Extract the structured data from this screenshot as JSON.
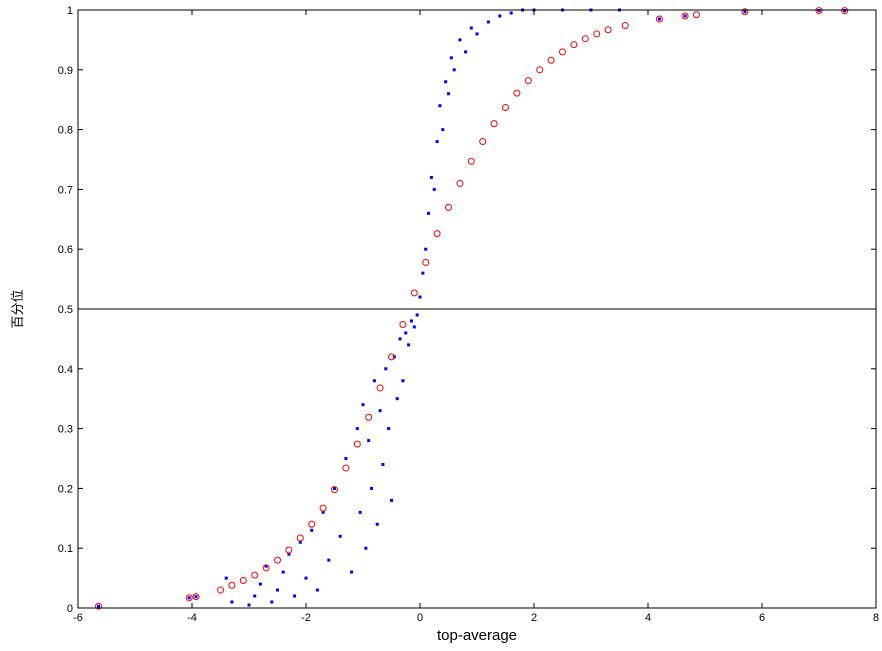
{
  "chart_data": {
    "type": "scatter",
    "title": "",
    "xlabel": "top-average",
    "ylabel": "百分位",
    "xlim": [
      -6,
      8
    ],
    "ylim": [
      0,
      1
    ],
    "x_ticks": [
      -6,
      -4,
      -2,
      0,
      2,
      4,
      6,
      8
    ],
    "x_tick_labels": [
      "-6",
      "-4",
      "-2",
      "0",
      "2",
      "4",
      "6",
      "8"
    ],
    "y_ticks": [
      0,
      0.1,
      0.2,
      0.3,
      0.4,
      0.5,
      0.6,
      0.7,
      0.8,
      0.9,
      1
    ],
    "y_tick_labels": [
      "0",
      "0.1",
      "0.2",
      "0.3",
      "0.4",
      "0.5",
      "0.6",
      "0.7",
      "0.8",
      "0.9",
      "1"
    ],
    "grid": false,
    "reference_line": {
      "y": 0.5
    },
    "series": [
      {
        "marker": "dot",
        "color": "#0000ff",
        "points": [
          [
            -5.64,
            0.003
          ],
          [
            -4.05,
            0.017
          ],
          [
            -3.93,
            0.019
          ],
          [
            -3.4,
            0.05
          ],
          [
            -3.3,
            0.01
          ],
          [
            -3.0,
            0.005
          ],
          [
            -2.9,
            0.02
          ],
          [
            -2.8,
            0.04
          ],
          [
            -2.7,
            0.07
          ],
          [
            -2.6,
            0.01
          ],
          [
            -2.5,
            0.03
          ],
          [
            -2.4,
            0.06
          ],
          [
            -2.3,
            0.09
          ],
          [
            -2.2,
            0.02
          ],
          [
            -2.1,
            0.11
          ],
          [
            -2.0,
            0.05
          ],
          [
            -1.9,
            0.13
          ],
          [
            -1.8,
            0.03
          ],
          [
            -1.7,
            0.16
          ],
          [
            -1.6,
            0.08
          ],
          [
            -1.5,
            0.2
          ],
          [
            -1.4,
            0.12
          ],
          [
            -1.3,
            0.25
          ],
          [
            -1.2,
            0.06
          ],
          [
            -1.1,
            0.3
          ],
          [
            -1.05,
            0.16
          ],
          [
            -1.0,
            0.34
          ],
          [
            -0.95,
            0.1
          ],
          [
            -0.9,
            0.28
          ],
          [
            -0.85,
            0.2
          ],
          [
            -0.8,
            0.38
          ],
          [
            -0.75,
            0.14
          ],
          [
            -0.7,
            0.33
          ],
          [
            -0.65,
            0.24
          ],
          [
            -0.6,
            0.4
          ],
          [
            -0.55,
            0.3
          ],
          [
            -0.5,
            0.18
          ],
          [
            -0.45,
            0.42
          ],
          [
            -0.4,
            0.35
          ],
          [
            -0.35,
            0.45
          ],
          [
            -0.3,
            0.38
          ],
          [
            -0.25,
            0.46
          ],
          [
            -0.2,
            0.44
          ],
          [
            -0.15,
            0.48
          ],
          [
            -0.1,
            0.47
          ],
          [
            -0.05,
            0.49
          ],
          [
            0.0,
            0.52
          ],
          [
            0.05,
            0.56
          ],
          [
            0.1,
            0.6
          ],
          [
            0.15,
            0.66
          ],
          [
            0.2,
            0.72
          ],
          [
            0.25,
            0.7
          ],
          [
            0.3,
            0.78
          ],
          [
            0.35,
            0.84
          ],
          [
            0.4,
            0.8
          ],
          [
            0.45,
            0.88
          ],
          [
            0.5,
            0.86
          ],
          [
            0.55,
            0.92
          ],
          [
            0.6,
            0.9
          ],
          [
            0.7,
            0.95
          ],
          [
            0.8,
            0.93
          ],
          [
            0.9,
            0.97
          ],
          [
            1.0,
            0.96
          ],
          [
            1.2,
            0.98
          ],
          [
            1.4,
            0.99
          ],
          [
            1.6,
            0.995
          ],
          [
            1.8,
            1.0
          ],
          [
            2.0,
            1.0
          ],
          [
            2.5,
            1.0
          ],
          [
            3.0,
            1.0
          ],
          [
            3.5,
            1.0
          ],
          [
            4.2,
            0.985
          ],
          [
            4.65,
            0.99
          ],
          [
            5.7,
            0.997
          ],
          [
            7.0,
            0.999
          ],
          [
            7.45,
            0.999
          ]
        ]
      },
      {
        "marker": "circle",
        "color": "#ff0000",
        "points": [
          [
            -5.64,
            0.003
          ],
          [
            -4.05,
            0.017
          ],
          [
            -3.93,
            0.019
          ],
          [
            -3.5,
            0.03
          ],
          [
            -3.3,
            0.038
          ],
          [
            -3.1,
            0.046
          ],
          [
            -2.9,
            0.055
          ],
          [
            -2.7,
            0.067
          ],
          [
            -2.5,
            0.08
          ],
          [
            -2.3,
            0.097
          ],
          [
            -2.1,
            0.117
          ],
          [
            -1.9,
            0.14
          ],
          [
            -1.7,
            0.167
          ],
          [
            -1.5,
            0.198
          ],
          [
            -1.3,
            0.234
          ],
          [
            -1.1,
            0.274
          ],
          [
            -0.9,
            0.319
          ],
          [
            -0.7,
            0.368
          ],
          [
            -0.5,
            0.42
          ],
          [
            -0.3,
            0.474
          ],
          [
            -0.1,
            0.527
          ],
          [
            0.1,
            0.578
          ],
          [
            0.3,
            0.626
          ],
          [
            0.5,
            0.67
          ],
          [
            0.7,
            0.71
          ],
          [
            0.9,
            0.747
          ],
          [
            1.1,
            0.78
          ],
          [
            1.3,
            0.81
          ],
          [
            1.5,
            0.837
          ],
          [
            1.7,
            0.861
          ],
          [
            1.9,
            0.882
          ],
          [
            2.1,
            0.9
          ],
          [
            2.3,
            0.916
          ],
          [
            2.5,
            0.93
          ],
          [
            2.7,
            0.942
          ],
          [
            2.9,
            0.952
          ],
          [
            3.1,
            0.96
          ],
          [
            3.3,
            0.967
          ],
          [
            3.6,
            0.974
          ],
          [
            4.2,
            0.985
          ],
          [
            4.65,
            0.99
          ],
          [
            4.85,
            0.992
          ],
          [
            5.7,
            0.997
          ],
          [
            7.0,
            0.999
          ],
          [
            7.45,
            0.999
          ]
        ]
      }
    ]
  }
}
